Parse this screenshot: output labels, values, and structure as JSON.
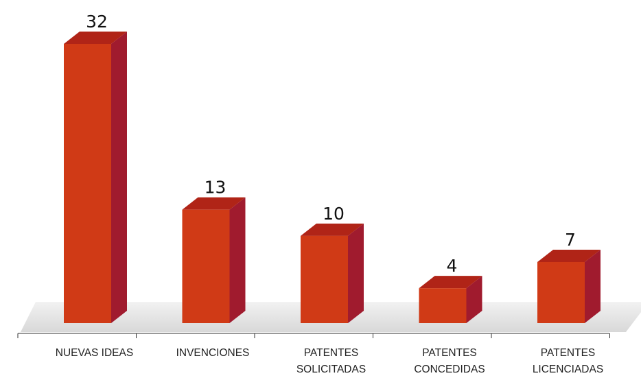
{
  "chart_data": {
    "type": "bar",
    "style": "3d",
    "title": "",
    "xlabel": "",
    "ylabel": "",
    "ylim": [
      0,
      32
    ],
    "grid": false,
    "legend": "none",
    "categories": [
      [
        "NUEVAS IDEAS"
      ],
      [
        "INVENCIONES"
      ],
      [
        "PATENTES",
        "SOLICITADAS"
      ],
      [
        "PATENTES",
        "CONCEDIDAS"
      ],
      [
        "PATENTES",
        "LICENCIADAS"
      ]
    ],
    "values": [
      32,
      13,
      10,
      4,
      7
    ],
    "value_labels": [
      "32",
      "13",
      "10",
      "4",
      "7"
    ]
  },
  "colors": {
    "bar_front": "#D03A16",
    "bar_top": "#B02417",
    "bar_side": "#A01B2E",
    "floor": "#E4E4E4",
    "axis": "#333333"
  }
}
